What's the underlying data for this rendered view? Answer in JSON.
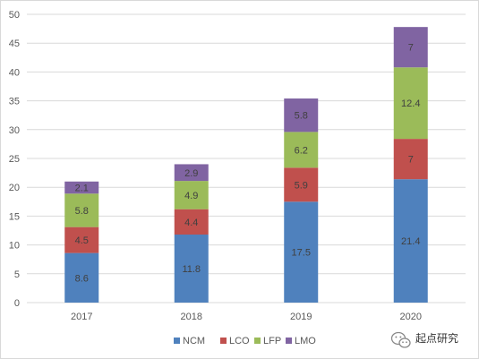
{
  "chart_data": {
    "type": "bar",
    "stacked": true,
    "categories": [
      "2017",
      "2018",
      "2019",
      "2020"
    ],
    "series": [
      {
        "name": "NCM",
        "color": "#4f81bd",
        "values": [
          8.6,
          11.8,
          17.5,
          21.4
        ]
      },
      {
        "name": "LCO",
        "color": "#c0504d",
        "values": [
          4.5,
          4.4,
          5.9,
          7
        ]
      },
      {
        "name": "LFP",
        "color": "#9bbb59",
        "values": [
          5.8,
          4.9,
          6.2,
          12.4
        ]
      },
      {
        "name": "LMO",
        "color": "#8064a2",
        "values": [
          2.1,
          2.9,
          5.8,
          7
        ]
      }
    ],
    "yticks": [
      "0",
      "5",
      "10",
      "15",
      "20",
      "25",
      "30",
      "35",
      "40",
      "45",
      "50"
    ],
    "ylim": [
      0,
      50
    ],
    "grid": true,
    "legend_position": "bottom",
    "title": "",
    "xlabel": "",
    "ylabel": ""
  },
  "watermark": {
    "text": "起点研究",
    "icon": "wechat-icon"
  },
  "colors": {
    "grid": "#d9d9d9",
    "axis_text": "#595959"
  }
}
